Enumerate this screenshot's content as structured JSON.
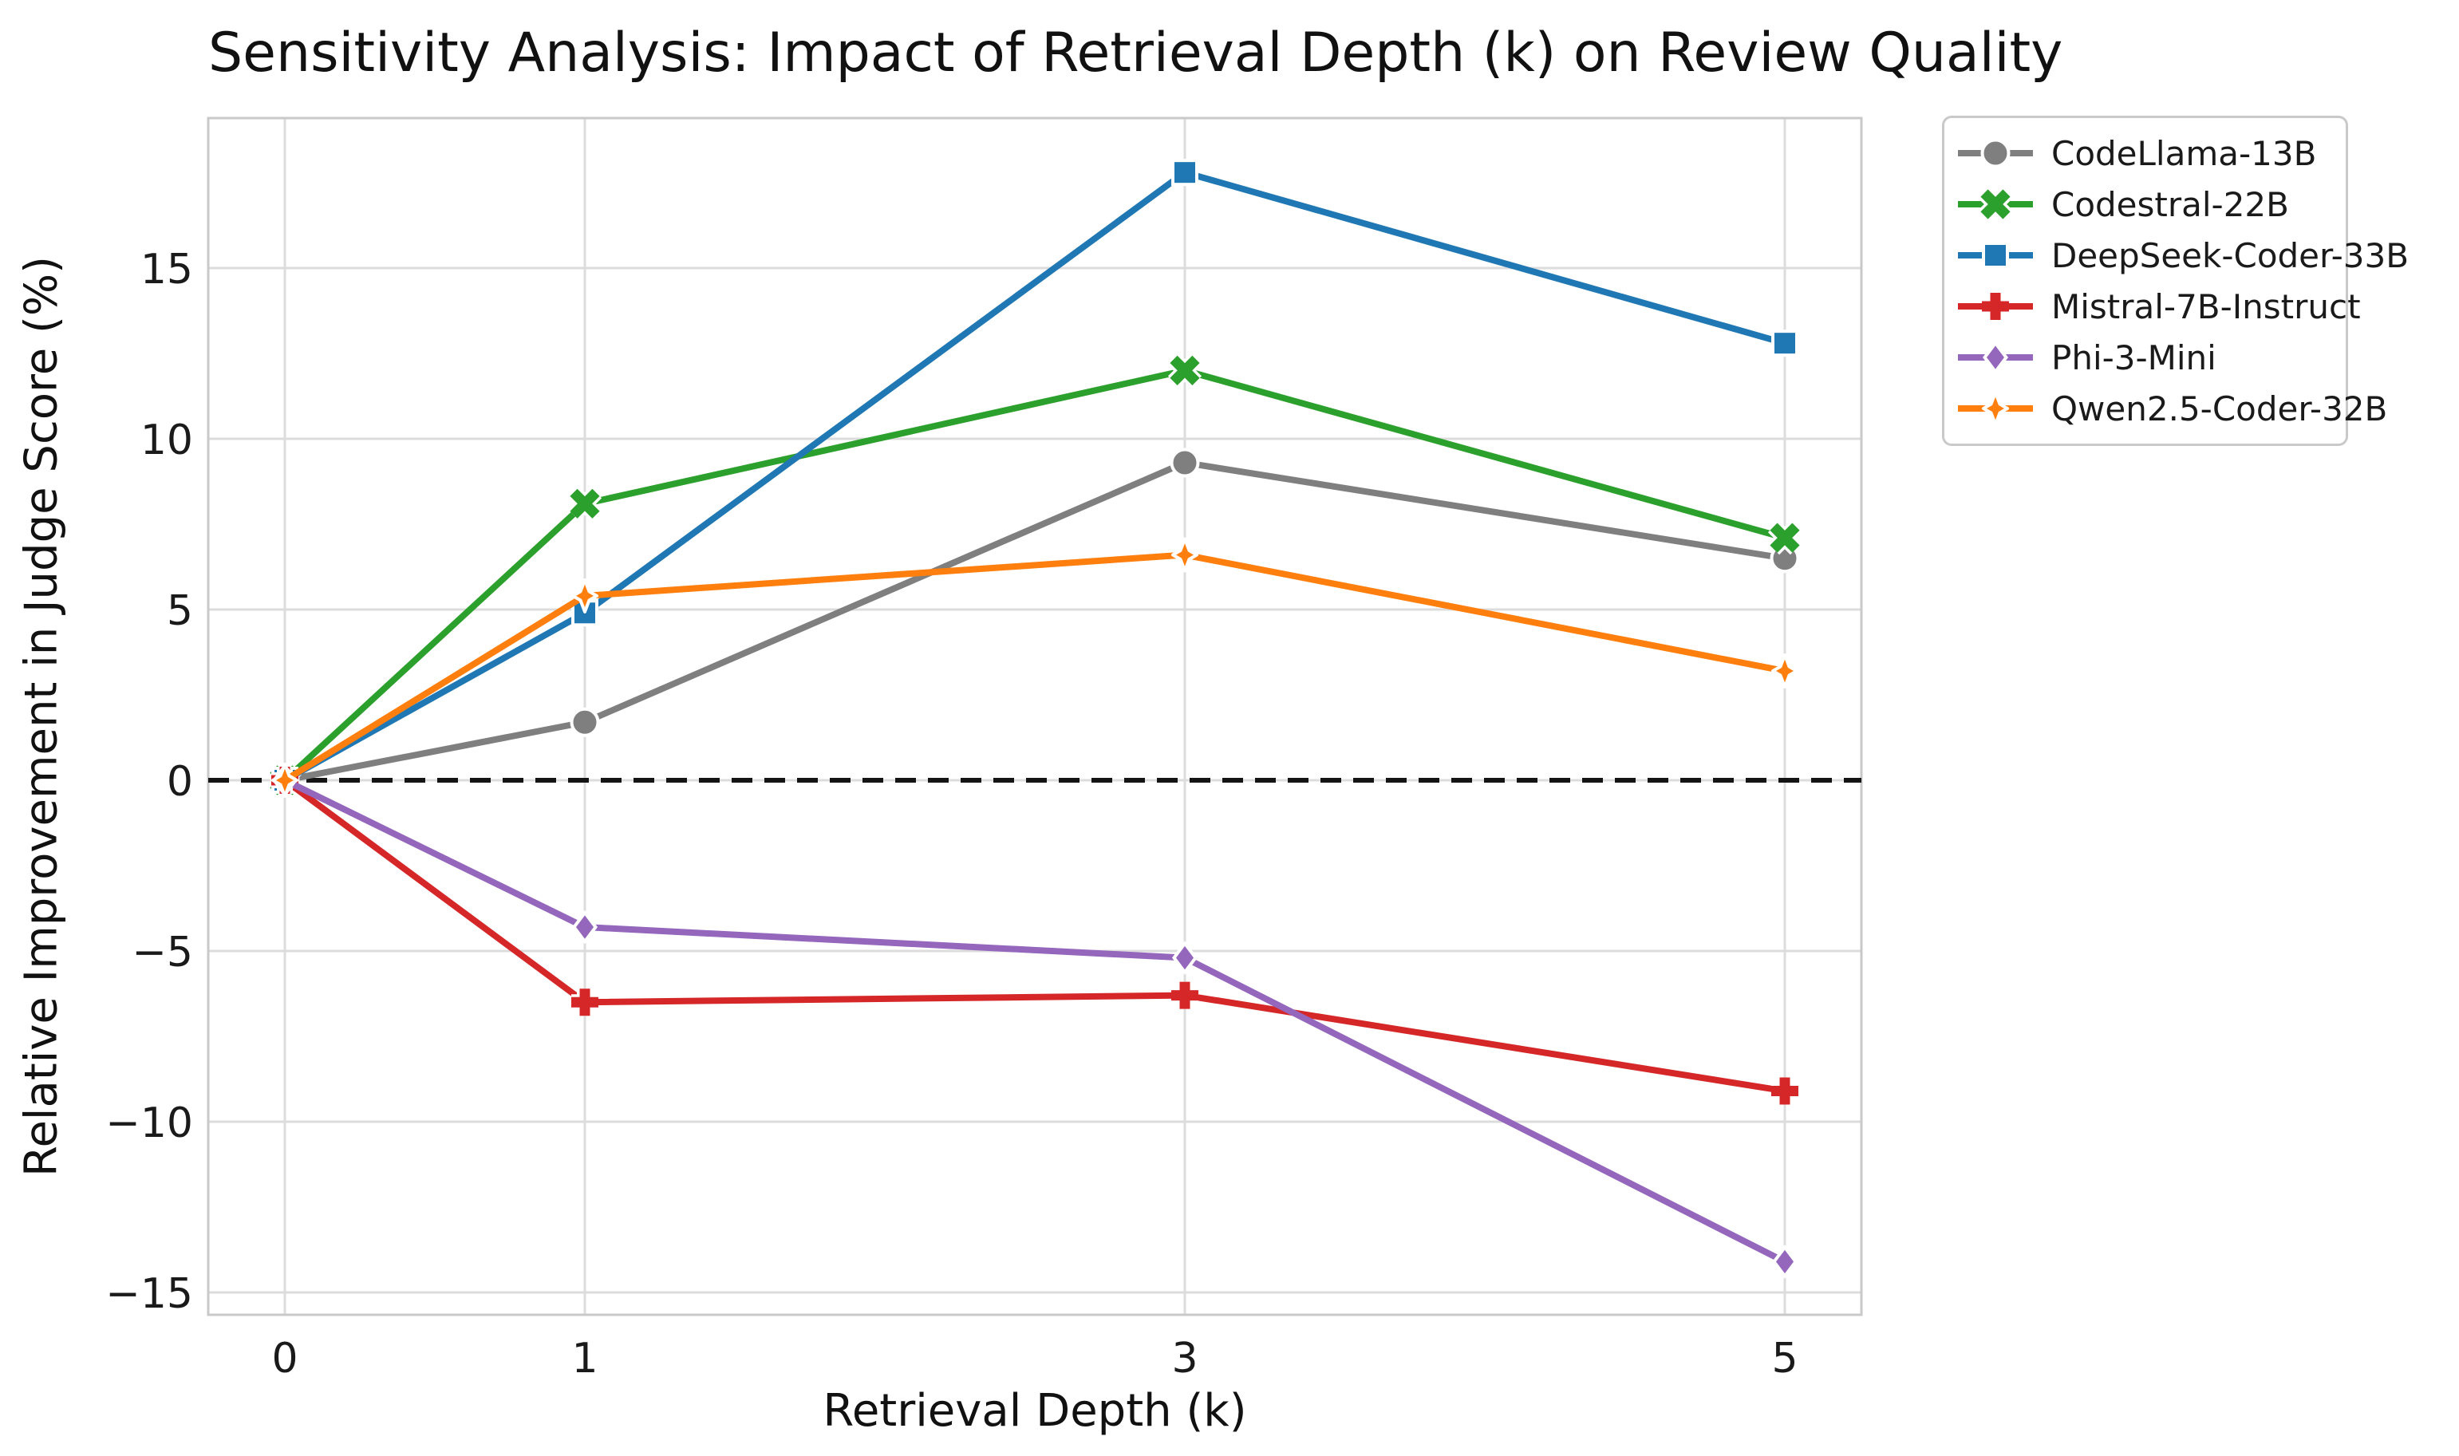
{
  "chart_data": {
    "type": "line",
    "title": "Sensitivity Analysis: Impact of Retrieval Depth (k) on Review Quality",
    "xlabel": "Retrieval Depth (k)",
    "ylabel": "Relative Improvement in Judge Score (%)",
    "x": [
      0,
      1,
      3,
      5
    ],
    "x_tick_labels": [
      "0",
      "1",
      "3",
      "5"
    ],
    "y_ticks": [
      15,
      10,
      5,
      0,
      -5,
      -10,
      -15
    ],
    "xlim": [
      -0.26,
      5.26
    ],
    "ylim": [
      -15.7,
      19.4
    ],
    "grid": true,
    "grid_color": "#dcdcdc",
    "spine_color": "#c9c9c9",
    "background_color": "#ffffff",
    "zero_line": {
      "y": 0,
      "style": "dashed",
      "color": "#141414"
    },
    "legend": {
      "position": "outside-upper-right",
      "border_color": "#c9c9c9"
    },
    "series": [
      {
        "name": "CodeLlama-13B",
        "color": "#7f7f7f",
        "marker": "circle",
        "values": [
          0,
          1.7,
          9.3,
          6.5
        ]
      },
      {
        "name": "Codestral-22B",
        "color": "#2ca02c",
        "marker": "x",
        "values": [
          0,
          8.1,
          12.0,
          7.1
        ]
      },
      {
        "name": "DeepSeek-Coder-33B",
        "color": "#1f77b4",
        "marker": "square",
        "values": [
          0,
          4.9,
          17.8,
          12.8
        ]
      },
      {
        "name": "Mistral-7B-Instruct",
        "color": "#d62728",
        "marker": "plus",
        "values": [
          0,
          -6.5,
          -6.3,
          -9.1
        ]
      },
      {
        "name": "Phi-3-Mini",
        "color": "#9467bd",
        "marker": "diamond",
        "values": [
          0,
          -4.3,
          -5.2,
          -14.1
        ]
      },
      {
        "name": "Qwen2.5-Coder-32B",
        "color": "#ff7f0e",
        "marker": "thin-diamond",
        "values": [
          0,
          5.4,
          6.6,
          3.2
        ]
      }
    ]
  }
}
